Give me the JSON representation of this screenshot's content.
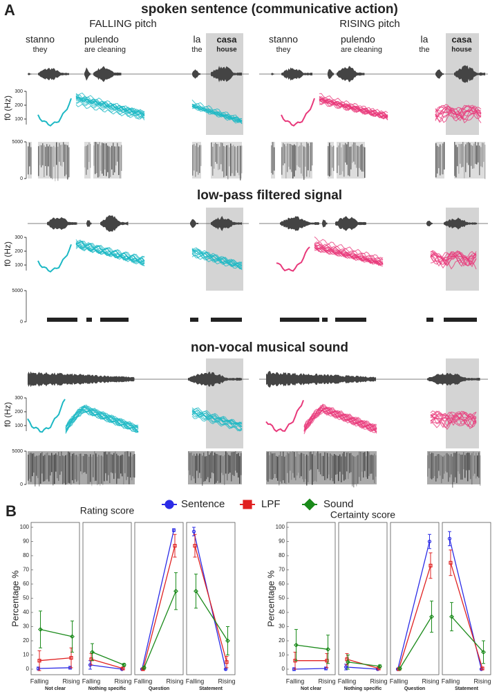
{
  "part_a": {
    "label": "A",
    "conditions": [
      "FALLING pitch",
      "RISING pitch"
    ],
    "words": [
      {
        "word": "stanno",
        "gloss": "they"
      },
      {
        "word": "pulendo",
        "gloss": "are cleaning"
      },
      {
        "word": "la",
        "gloss": "the"
      },
      {
        "word": "casa",
        "gloss": "house"
      }
    ],
    "sections": [
      {
        "title": "spoken sentence (communicative action)",
        "f0_label": "f0 (Hz)",
        "f0_ticks": [
          300,
          200,
          100
        ],
        "spec_ticks": [
          5000,
          0
        ]
      },
      {
        "title": "low-pass filtered signal",
        "f0_label": "f0 (Hz)",
        "f0_ticks": [
          300,
          200,
          100
        ],
        "spec_ticks": [
          5000,
          0
        ]
      },
      {
        "title": "non-vocal musical sound",
        "f0_label": "f0 (Hz)",
        "f0_ticks": [
          300,
          200,
          100
        ],
        "spec_ticks": [
          5000,
          0
        ]
      }
    ]
  },
  "part_b": {
    "label": "B",
    "legend": [
      {
        "name": "Sentence",
        "color": "#2b2be6",
        "marker": "circle"
      },
      {
        "name": "LPF",
        "color": "#e02020",
        "marker": "square"
      },
      {
        "name": "Sound",
        "color": "#1a8a1a",
        "marker": "diamond"
      }
    ]
  },
  "chart_data": [
    {
      "type": "line",
      "title": "Rating score",
      "ylabel": "Percentage %",
      "ylim": [
        0,
        100
      ],
      "yticks": [
        0,
        10,
        20,
        30,
        40,
        50,
        60,
        70,
        80,
        90,
        100
      ],
      "categories": [
        "Falling",
        "Rising"
      ],
      "panels": [
        {
          "label": "Not clear",
          "series": [
            {
              "values": [
                0.5,
                1
              ],
              "errors": [
                1,
                1
              ]
            },
            {
              "values": [
                6,
                8
              ],
              "errors": [
                7,
                7
              ]
            },
            {
              "values": [
                28,
                23
              ],
              "errors": [
                13,
                11
              ]
            }
          ]
        },
        {
          "label": "Nothing specific",
          "series": [
            {
              "values": [
                3,
                0
              ],
              "errors": [
                3,
                0.5
              ]
            },
            {
              "values": [
                7,
                0.5
              ],
              "errors": [
                4,
                1
              ]
            },
            {
              "values": [
                12,
                3
              ],
              "errors": [
                6,
                1
              ]
            }
          ]
        },
        {
          "label": "Question",
          "series": [
            {
              "values": [
                0,
                98
              ],
              "errors": [
                0.5,
                1
              ]
            },
            {
              "values": [
                0,
                87
              ],
              "errors": [
                0.5,
                8
              ]
            },
            {
              "values": [
                1,
                55
              ],
              "errors": [
                1,
                13
              ]
            }
          ]
        },
        {
          "label": "Statement",
          "series": [
            {
              "values": [
                97,
                0
              ],
              "errors": [
                3,
                0.5
              ]
            },
            {
              "values": [
                87,
                5
              ],
              "errors": [
                8,
                4
              ]
            },
            {
              "values": [
                55,
                20
              ],
              "errors": [
                12,
                10
              ]
            }
          ]
        }
      ]
    },
    {
      "type": "line",
      "title": "Certainty score",
      "ylabel": "Percentage %",
      "ylim": [
        0,
        100
      ],
      "yticks": [
        0,
        10,
        20,
        30,
        40,
        50,
        60,
        70,
        80,
        90,
        100
      ],
      "categories": [
        "Falling",
        "Rising"
      ],
      "panels": [
        {
          "label": "Not clear",
          "series": [
            {
              "values": [
                0,
                0.5
              ],
              "errors": [
                1,
                1
              ]
            },
            {
              "values": [
                6,
                6
              ],
              "errors": [
                6,
                5
              ]
            },
            {
              "values": [
                17,
                14
              ],
              "errors": [
                11,
                10
              ]
            }
          ]
        },
        {
          "label": "Nothing specific",
          "series": [
            {
              "values": [
                1.5,
                0
              ],
              "errors": [
                2,
                0.5
              ]
            },
            {
              "values": [
                7,
                0.5
              ],
              "errors": [
                4,
                1
              ]
            },
            {
              "values": [
                5,
                2
              ],
              "errors": [
                5,
                1
              ]
            }
          ]
        },
        {
          "label": "Question",
          "series": [
            {
              "values": [
                0,
                90
              ],
              "errors": [
                0.5,
                5
              ]
            },
            {
              "values": [
                0,
                73
              ],
              "errors": [
                0.5,
                9
              ]
            },
            {
              "values": [
                0.5,
                37
              ],
              "errors": [
                1,
                11
              ]
            }
          ]
        },
        {
          "label": "Statement",
          "series": [
            {
              "values": [
                92,
                0
              ],
              "errors": [
                5,
                0.5
              ]
            },
            {
              "values": [
                75,
                0.5
              ],
              "errors": [
                9,
                1
              ]
            },
            {
              "values": [
                37,
                12
              ],
              "errors": [
                10,
                8
              ]
            }
          ]
        }
      ]
    }
  ]
}
